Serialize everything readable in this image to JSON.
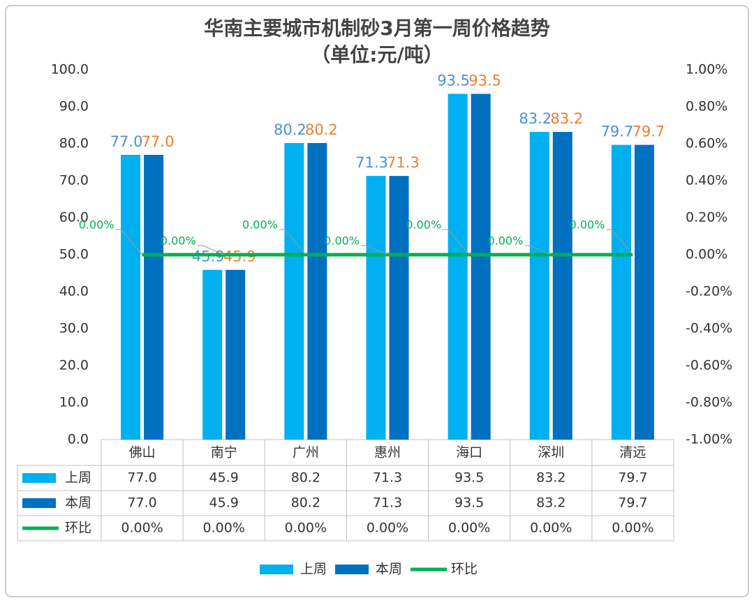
{
  "chart_data": {
    "type": "bar",
    "title": "华南主要城市机制砂3月第一周价格趋势",
    "subtitle": "（单位:元/吨）",
    "categories": [
      "佛山",
      "南宁",
      "广州",
      "惠州",
      "海口",
      "深圳",
      "清远"
    ],
    "series": [
      {
        "name": "上周",
        "type": "bar",
        "color": "#00b0f0",
        "label_color": "#4a90d9",
        "values": [
          77.0,
          45.9,
          80.2,
          71.3,
          93.5,
          83.2,
          79.7
        ],
        "value_labels": [
          "77.0",
          "45.9",
          "80.2",
          "71.3",
          "93.5",
          "83.2",
          "79.7"
        ]
      },
      {
        "name": "本周",
        "type": "bar",
        "color": "#0070c0",
        "label_color": "#ed7d31",
        "values": [
          77.0,
          45.9,
          80.2,
          71.3,
          93.5,
          83.2,
          79.7
        ],
        "value_labels": [
          "77.0",
          "45.9",
          "80.2",
          "71.3",
          "93.5",
          "83.2",
          "79.7"
        ]
      },
      {
        "name": "环比",
        "type": "line",
        "axis": "y2",
        "color": "#00b050",
        "label_color": "#00b050",
        "values": [
          0,
          0,
          0,
          0,
          0,
          0,
          0
        ],
        "value_labels": [
          "0.00%",
          "0.00%",
          "0.00%",
          "0.00%",
          "0.00%",
          "0.00%",
          "0.00%"
        ]
      }
    ],
    "ylim": [
      0,
      100
    ],
    "yticks": [
      {
        "value": 0,
        "label": "0.0"
      },
      {
        "value": 10,
        "label": "10.0"
      },
      {
        "value": 20,
        "label": "20.0"
      },
      {
        "value": 30,
        "label": "30.0"
      },
      {
        "value": 40,
        "label": "40.0"
      },
      {
        "value": 50,
        "label": "50.0"
      },
      {
        "value": 60,
        "label": "60.0"
      },
      {
        "value": 70,
        "label": "70.0"
      },
      {
        "value": 80,
        "label": "80.0"
      },
      {
        "value": 90,
        "label": "90.0"
      },
      {
        "value": 100,
        "label": "100.0"
      }
    ],
    "y2lim": [
      -1,
      1
    ],
    "y2ticks": [
      {
        "value": -1,
        "label": "-1.00%"
      },
      {
        "value": -0.8,
        "label": "-0.80%"
      },
      {
        "value": -0.6,
        "label": "-0.60%"
      },
      {
        "value": -0.4,
        "label": "-0.40%"
      },
      {
        "value": -0.2,
        "label": "-0.20%"
      },
      {
        "value": 0,
        "label": "0.00%"
      },
      {
        "value": 0.2,
        "label": "0.20%"
      },
      {
        "value": 0.4,
        "label": "0.40%"
      },
      {
        "value": 0.6,
        "label": "0.60%"
      },
      {
        "value": 0.8,
        "label": "0.80%"
      },
      {
        "value": 1,
        "label": "1.00%"
      }
    ],
    "data_table": true,
    "legend": "bottom"
  }
}
